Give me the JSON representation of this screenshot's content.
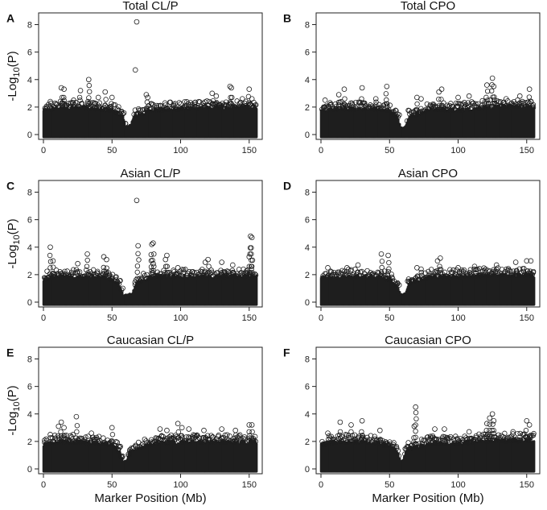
{
  "chart_data": [
    {
      "type": "scatter",
      "letter": "A",
      "title": "Total CL/P",
      "xlabel": "",
      "ylabel": "-Log10(P)",
      "xlim": [
        0,
        156
      ],
      "ylim": [
        0,
        8.5
      ],
      "xticks": [
        0,
        50,
        100,
        150
      ],
      "yticks": [
        0,
        2,
        4,
        6,
        8
      ],
      "gap": [
        60,
        65
      ],
      "baseline": [
        [
          0,
          1.7
        ],
        [
          10,
          1.9
        ],
        [
          20,
          1.9
        ],
        [
          30,
          1.9
        ],
        [
          40,
          1.8
        ],
        [
          50,
          1.7
        ],
        [
          58,
          1.3
        ],
        [
          60,
          0.4
        ],
        [
          64,
          0.6
        ],
        [
          66,
          1.3
        ],
        [
          80,
          1.7
        ],
        [
          100,
          1.8
        ],
        [
          120,
          1.9
        ],
        [
          140,
          1.9
        ],
        [
          156,
          2.0
        ]
      ],
      "peaks": [
        [
          68,
          8.2
        ],
        [
          67,
          4.7
        ],
        [
          33,
          4.0
        ],
        [
          13,
          3.4
        ],
        [
          15,
          3.3
        ],
        [
          27,
          3.2
        ],
        [
          45,
          3.1
        ],
        [
          136,
          3.5
        ],
        [
          137,
          3.4
        ],
        [
          150,
          3.3
        ],
        [
          75,
          2.9
        ],
        [
          76,
          2.7
        ],
        [
          123,
          3.0
        ],
        [
          126,
          2.8
        ],
        [
          40,
          2.7
        ],
        [
          50,
          2.7
        ],
        [
          22,
          2.5
        ],
        [
          5,
          2.4
        ],
        [
          95,
          2.2
        ],
        [
          110,
          2.3
        ],
        [
          145,
          2.6
        ],
        [
          152,
          2.6
        ]
      ]
    },
    {
      "type": "scatter",
      "letter": "B",
      "title": "Total CPO",
      "xlabel": "",
      "ylabel": "",
      "xlim": [
        0,
        156
      ],
      "ylim": [
        0,
        8.5
      ],
      "xticks": [
        0,
        50,
        100,
        150
      ],
      "yticks": [
        0,
        2,
        4,
        6,
        8
      ],
      "gap": [
        57,
        63
      ],
      "baseline": [
        [
          0,
          1.6
        ],
        [
          10,
          1.8
        ],
        [
          20,
          1.8
        ],
        [
          30,
          1.8
        ],
        [
          40,
          1.8
        ],
        [
          50,
          1.7
        ],
        [
          56,
          1.2
        ],
        [
          58,
          0.4
        ],
        [
          62,
          0.5
        ],
        [
          64,
          1.2
        ],
        [
          80,
          1.8
        ],
        [
          100,
          1.7
        ],
        [
          120,
          1.9
        ],
        [
          140,
          2.0
        ],
        [
          156,
          1.9
        ]
      ],
      "peaks": [
        [
          125,
          4.1
        ],
        [
          121,
          3.6
        ],
        [
          126,
          3.5
        ],
        [
          30,
          3.4
        ],
        [
          48,
          3.5
        ],
        [
          88,
          3.3
        ],
        [
          86,
          3.1
        ],
        [
          17,
          3.3
        ],
        [
          13,
          2.9
        ],
        [
          152,
          3.3
        ],
        [
          100,
          2.7
        ],
        [
          108,
          2.8
        ],
        [
          70,
          2.7
        ],
        [
          73,
          2.6
        ],
        [
          40,
          2.6
        ],
        [
          3,
          2.5
        ],
        [
          135,
          2.6
        ],
        [
          145,
          2.8
        ]
      ]
    },
    {
      "type": "scatter",
      "letter": "C",
      "title": "Asian CL/P",
      "xlabel": "",
      "ylabel": "-Log10(P)",
      "xlim": [
        0,
        156
      ],
      "ylim": [
        0,
        8.5
      ],
      "xticks": [
        0,
        50,
        100,
        150
      ],
      "yticks": [
        0,
        2,
        4,
        6,
        8
      ],
      "gap": [
        58,
        66
      ],
      "baseline": [
        [
          0,
          1.6
        ],
        [
          10,
          1.8
        ],
        [
          20,
          1.8
        ],
        [
          30,
          1.8
        ],
        [
          40,
          1.8
        ],
        [
          50,
          1.6
        ],
        [
          56,
          1.1
        ],
        [
          58,
          0.4
        ],
        [
          65,
          0.5
        ],
        [
          67,
          1.3
        ],
        [
          80,
          1.8
        ],
        [
          100,
          1.8
        ],
        [
          120,
          1.8
        ],
        [
          140,
          1.8
        ],
        [
          156,
          1.8
        ]
      ],
      "peaks": [
        [
          68,
          7.4
        ],
        [
          5,
          4.0
        ],
        [
          69,
          4.1
        ],
        [
          151,
          4.8
        ],
        [
          152,
          4.7
        ],
        [
          150,
          3.3
        ],
        [
          32,
          3.5
        ],
        [
          44,
          3.3
        ],
        [
          46,
          3.1
        ],
        [
          90,
          3.4
        ],
        [
          89,
          3.1
        ],
        [
          80,
          4.3
        ],
        [
          79,
          4.2
        ],
        [
          80,
          2.8
        ],
        [
          120,
          3.1
        ],
        [
          118,
          2.9
        ],
        [
          130,
          2.9
        ],
        [
          138,
          2.7
        ],
        [
          7,
          3.0
        ],
        [
          25,
          2.8
        ],
        [
          98,
          2.5
        ]
      ]
    },
    {
      "type": "scatter",
      "letter": "D",
      "title": "Asian CPO",
      "xlabel": "",
      "ylabel": "",
      "xlim": [
        0,
        156
      ],
      "ylim": [
        0,
        8.5
      ],
      "xticks": [
        0,
        50,
        100,
        150
      ],
      "yticks": [
        0,
        2,
        4,
        6,
        8
      ],
      "gap": [
        57,
        63
      ],
      "baseline": [
        [
          0,
          1.7
        ],
        [
          10,
          1.8
        ],
        [
          20,
          1.8
        ],
        [
          30,
          1.8
        ],
        [
          40,
          1.8
        ],
        [
          50,
          1.6
        ],
        [
          56,
          1.1
        ],
        [
          58,
          0.4
        ],
        [
          62,
          0.5
        ],
        [
          64,
          1.3
        ],
        [
          80,
          1.8
        ],
        [
          100,
          1.8
        ],
        [
          120,
          1.9
        ],
        [
          140,
          1.9
        ],
        [
          156,
          1.9
        ]
      ],
      "peaks": [
        [
          44,
          3.5
        ],
        [
          49,
          3.4
        ],
        [
          87,
          3.2
        ],
        [
          85,
          3.0
        ],
        [
          5,
          2.5
        ],
        [
          19,
          2.5
        ],
        [
          27,
          2.7
        ],
        [
          70,
          2.5
        ],
        [
          73,
          2.4
        ],
        [
          128,
          2.7
        ],
        [
          142,
          2.9
        ],
        [
          150,
          3.0
        ],
        [
          153,
          3.0
        ],
        [
          100,
          2.5
        ],
        [
          112,
          2.6
        ],
        [
          120,
          2.4
        ]
      ]
    },
    {
      "type": "scatter",
      "letter": "E",
      "title": "Caucasian CL/P",
      "xlabel": "Marker Position (Mb)",
      "ylabel": "-Log10(P)",
      "xlim": [
        0,
        156
      ],
      "ylim": [
        0,
        8.5
      ],
      "xticks": [
        0,
        50,
        100,
        150
      ],
      "yticks": [
        0,
        2,
        4,
        6,
        8
      ],
      "gap": [
        58,
        62
      ],
      "baseline": [
        [
          0,
          1.7
        ],
        [
          10,
          1.9
        ],
        [
          20,
          1.9
        ],
        [
          30,
          1.9
        ],
        [
          40,
          1.8
        ],
        [
          50,
          1.7
        ],
        [
          56,
          1.2
        ],
        [
          58,
          0.4
        ],
        [
          61,
          0.5
        ],
        [
          63,
          1.2
        ],
        [
          80,
          1.8
        ],
        [
          100,
          1.9
        ],
        [
          120,
          1.9
        ],
        [
          140,
          1.9
        ],
        [
          156,
          1.9
        ]
      ],
      "peaks": [
        [
          24,
          3.8
        ],
        [
          13,
          3.4
        ],
        [
          11,
          3.1
        ],
        [
          15,
          3.0
        ],
        [
          35,
          2.6
        ],
        [
          50,
          3.0
        ],
        [
          85,
          2.9
        ],
        [
          98,
          3.3
        ],
        [
          101,
          3.0
        ],
        [
          106,
          2.9
        ],
        [
          117,
          2.8
        ],
        [
          150,
          3.2
        ],
        [
          152,
          3.2
        ],
        [
          130,
          2.9
        ],
        [
          140,
          2.8
        ],
        [
          90,
          2.8
        ],
        [
          5,
          2.5
        ]
      ]
    },
    {
      "type": "scatter",
      "letter": "F",
      "title": "Caucasian CPO",
      "xlabel": "Marker Position (Mb)",
      "ylabel": "",
      "xlim": [
        0,
        156
      ],
      "ylim": [
        0,
        8.5
      ],
      "xticks": [
        0,
        50,
        100,
        150
      ],
      "yticks": [
        0,
        2,
        4,
        6,
        8
      ],
      "gap": [
        57,
        61
      ],
      "baseline": [
        [
          0,
          1.7
        ],
        [
          10,
          1.9
        ],
        [
          20,
          1.9
        ],
        [
          30,
          1.9
        ],
        [
          40,
          1.8
        ],
        [
          50,
          1.6
        ],
        [
          56,
          1.2
        ],
        [
          58,
          0.4
        ],
        [
          60,
          0.5
        ],
        [
          62,
          1.3
        ],
        [
          80,
          1.8
        ],
        [
          100,
          1.8
        ],
        [
          120,
          2.0
        ],
        [
          140,
          2.0
        ],
        [
          156,
          2.0
        ]
      ],
      "peaks": [
        [
          69,
          4.5
        ],
        [
          125,
          4.0
        ],
        [
          123,
          3.7
        ],
        [
          126,
          3.5
        ],
        [
          121,
          3.3
        ],
        [
          150,
          3.5
        ],
        [
          152,
          3.2
        ],
        [
          14,
          3.4
        ],
        [
          30,
          3.5
        ],
        [
          22,
          3.2
        ],
        [
          68,
          3.1
        ],
        [
          83,
          2.9
        ],
        [
          90,
          2.9
        ],
        [
          108,
          2.7
        ],
        [
          140,
          2.7
        ],
        [
          5,
          2.6
        ],
        [
          43,
          2.8
        ]
      ]
    }
  ]
}
